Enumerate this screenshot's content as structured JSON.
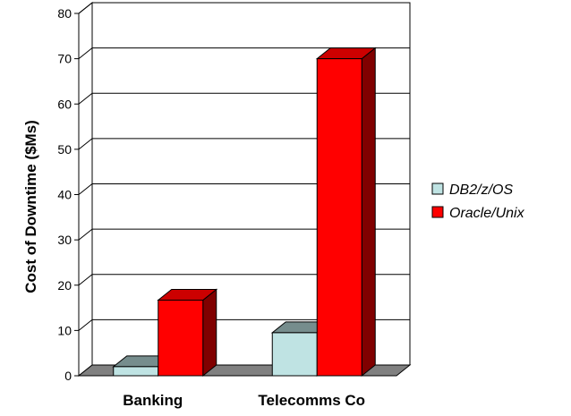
{
  "chart_data": {
    "type": "bar",
    "categories": [
      "Banking",
      "Telecomms Co"
    ],
    "series": [
      {
        "name": "DB2/z/OS",
        "values": [
          2,
          9.5
        ]
      },
      {
        "name": "Oracle/Unix",
        "values": [
          16.7,
          70
        ]
      }
    ],
    "title": "",
    "xlabel": "",
    "ylabel": "Cost of Downtime ($Ms)",
    "ylim": [
      0,
      80
    ],
    "yticks": [
      "0",
      "10",
      "20",
      "30",
      "40",
      "50",
      "60",
      "70",
      "80"
    ],
    "grid": true,
    "legend_position": "right",
    "three_d": true,
    "colors": {
      "DB2/z/OS": "#bfe3e3",
      "Oracle/Unix": "#ff0000",
      "wall": "#ffffff",
      "floor": "#808080",
      "gridline": "#000000"
    }
  }
}
